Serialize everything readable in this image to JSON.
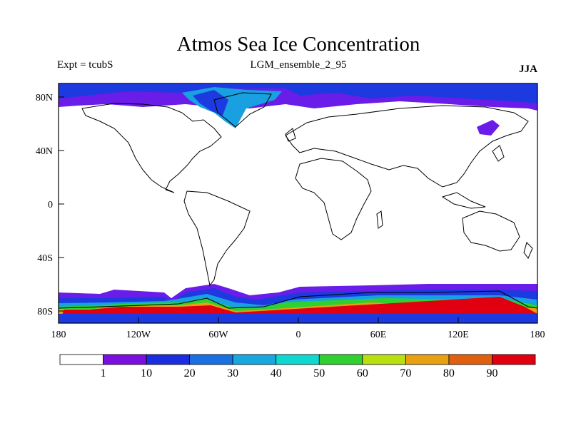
{
  "header": {
    "title": "Atmos Sea Ice Concentration",
    "experiment": "Expt = tcubS",
    "run": "LGM_ensemble_2_95",
    "season": "JJA"
  },
  "axes": {
    "lat_labels": [
      "80N",
      "40N",
      "0",
      "40S",
      "80S"
    ],
    "lon_labels": [
      "180",
      "120W",
      "60W",
      "0",
      "60E",
      "120E",
      "180"
    ]
  },
  "colorbar": {
    "labels": [
      "1",
      "10",
      "20",
      "30",
      "40",
      "50",
      "60",
      "70",
      "80",
      "90"
    ],
    "colors": [
      "#ffffff",
      "#7a10e0",
      "#1a2ee0",
      "#1a70e0",
      "#18a8e0",
      "#10d8d0",
      "#30d030",
      "#b8e010",
      "#e8a010",
      "#e06010",
      "#e00010"
    ]
  },
  "colors": {
    "ice_low": "#6a1ce8",
    "ice_mid": "#1c3ae0",
    "ice_high": "#18a0e0",
    "coast": "#000000"
  }
}
